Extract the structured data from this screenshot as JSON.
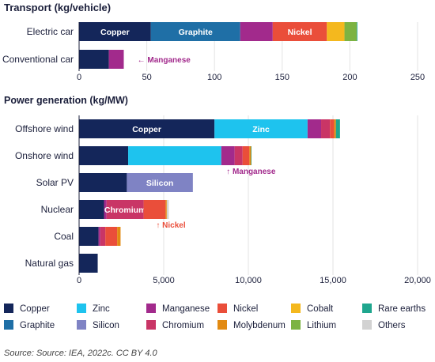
{
  "source": "Source: Source: IEA, 2022c. CC BY 4.0",
  "colors": {
    "Copper": "#14265a",
    "Graphite": "#1f6fa6",
    "Manganese": "#a22a8c",
    "Nickel": "#ea4e3a",
    "Cobalt": "#f4b81e",
    "Lithium": "#7cb342",
    "Rare earths": "#1fa68e",
    "Zinc": "#1ec3ee",
    "Silicon": "#7f83c4",
    "Chromium": "#c93566",
    "Molybdenum": "#e28a12",
    "Others": "#d2d2d2"
  },
  "legend": [
    [
      "Copper",
      "Zinc",
      "Manganese",
      "Nickel",
      "Cobalt",
      "Rare earths"
    ],
    [
      "Graphite",
      "Silicon",
      "Chromium",
      "Molybdenum",
      "Lithium",
      "Others"
    ]
  ],
  "chart_data": [
    {
      "type": "bar",
      "orientation": "horizontal",
      "stacked": true,
      "title": "Transport (kg/vehicle)",
      "xlim": [
        0,
        250
      ],
      "xticks": [
        0,
        50,
        100,
        150,
        200,
        250
      ],
      "tick_labels": [
        "0",
        "50",
        "100",
        "150",
        "200",
        "250"
      ],
      "categories": [
        "Electric car",
        "Conventional car"
      ],
      "series": [
        {
          "name": "Copper",
          "values": [
            53,
            22
          ],
          "labels": [
            "Copper",
            ""
          ]
        },
        {
          "name": "Graphite",
          "values": [
            66,
            0
          ],
          "labels": [
            "Graphite",
            ""
          ]
        },
        {
          "name": "Manganese",
          "values": [
            24,
            11
          ],
          "labels": [
            "",
            ""
          ]
        },
        {
          "name": "Nickel",
          "values": [
            40,
            0
          ],
          "labels": [
            "Nickel",
            ""
          ]
        },
        {
          "name": "Cobalt",
          "values": [
            13,
            0
          ],
          "labels": [
            "",
            ""
          ]
        },
        {
          "name": "Lithium",
          "values": [
            9,
            0
          ],
          "labels": [
            "",
            ""
          ]
        },
        {
          "name": "Rare earths",
          "values": [
            0.5,
            0
          ],
          "labels": [
            "",
            ""
          ]
        }
      ],
      "annotations": [
        {
          "text": "← Manganese",
          "category": "Conventional car",
          "x": 43,
          "color_key": "Manganese"
        }
      ]
    },
    {
      "type": "bar",
      "orientation": "horizontal",
      "stacked": true,
      "title": "Power generation (kg/MW)",
      "xlim": [
        0,
        20000
      ],
      "xticks": [
        0,
        5000,
        10000,
        15000,
        20000
      ],
      "tick_labels": [
        "0",
        "5,000",
        "10,000",
        "15,000",
        "20,000"
      ],
      "categories": [
        "Offshore wind",
        "Onshore wind",
        "Solar PV",
        "Nuclear",
        "Coal",
        "Natural gas"
      ],
      "series": [
        {
          "name": "Copper",
          "values": [
            8000,
            2900,
            2822,
            1473,
            1150,
            1100
          ],
          "labels": [
            "Copper",
            "",
            "",
            "",
            "",
            ""
          ]
        },
        {
          "name": "Zinc",
          "values": [
            5500,
            5500,
            0,
            0,
            0,
            0
          ],
          "labels": [
            "Zinc",
            "",
            "",
            "",
            "",
            ""
          ]
        },
        {
          "name": "Silicon",
          "values": [
            0,
            0,
            3900,
            0,
            0,
            0
          ],
          "labels": [
            "",
            "",
            "Silicon",
            "",
            "",
            ""
          ]
        },
        {
          "name": "Manganese",
          "values": [
            800,
            790,
            0,
            150,
            100,
            0
          ],
          "labels": [
            "",
            "",
            "",
            "",
            "",
            ""
          ]
        },
        {
          "name": "Chromium",
          "values": [
            525,
            470,
            0,
            2190,
            300,
            0
          ],
          "labels": [
            "",
            "",
            "",
            "Chromium",
            "",
            ""
          ]
        },
        {
          "name": "Nickel",
          "values": [
            240,
            400,
            0,
            1297,
            700,
            0
          ],
          "labels": [
            "",
            "",
            "",
            "",
            "",
            ""
          ]
        },
        {
          "name": "Molybdenum",
          "values": [
            110,
            100,
            0,
            70,
            200,
            0
          ],
          "labels": [
            "",
            "",
            "",
            "",
            "",
            ""
          ]
        },
        {
          "name": "Rare earths",
          "values": [
            240,
            14,
            0,
            0,
            0,
            0
          ],
          "labels": [
            "",
            "",
            "",
            "",
            "",
            ""
          ]
        },
        {
          "name": "Others",
          "values": [
            0,
            0,
            0,
            120,
            0,
            0
          ],
          "labels": [
            "",
            "",
            "",
            "",
            "",
            ""
          ]
        }
      ],
      "annotations": [
        {
          "text": "↑ Manganese",
          "category": "Onshore wind",
          "x": 8700,
          "color_key": "Manganese"
        },
        {
          "text": "↑ Nickel",
          "category": "Nuclear",
          "x": 4550,
          "color_key": "Nickel"
        }
      ]
    }
  ]
}
